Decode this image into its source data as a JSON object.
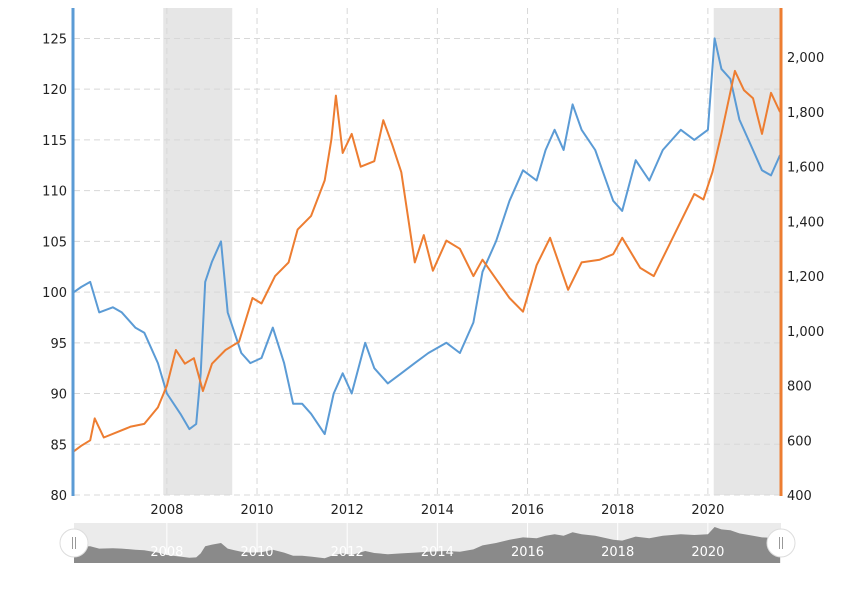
{
  "chart_data": {
    "type": "line",
    "title": "",
    "xlabel": "",
    "x_ticks": [
      "2008",
      "2010",
      "2012",
      "2014",
      "2016",
      "2018",
      "2020"
    ],
    "xlim": [
      2005.94,
      2021.6
    ],
    "left_axis": {
      "ylim": [
        80,
        128
      ],
      "ticks": [
        "80",
        "85",
        "90",
        "95",
        "100",
        "105",
        "110",
        "115",
        "120",
        "125"
      ],
      "color": "#5b9bd5"
    },
    "right_axis": {
      "ylim": [
        400,
        2180
      ],
      "ticks": [
        "400",
        "600",
        "800",
        "1,000",
        "1,200",
        "1,400",
        "1,600",
        "1,800",
        "2,000"
      ],
      "color": "#ed7d31"
    },
    "grid": true,
    "recession_shading": [
      [
        2007.92,
        2009.45
      ],
      [
        2020.13,
        2021.6
      ]
    ],
    "shading_color": "#e6e6e6",
    "series": [
      {
        "axis": "left",
        "color": "#5b9bd5",
        "x": [
          2005.94,
          2006.1,
          2006.3,
          2006.5,
          2006.8,
          2007.0,
          2007.3,
          2007.5,
          2007.8,
          2008.0,
          2008.3,
          2008.5,
          2008.65,
          2008.75,
          2008.85,
          2009.0,
          2009.2,
          2009.35,
          2009.5,
          2009.65,
          2009.85,
          2010.1,
          2010.35,
          2010.6,
          2010.8,
          2011.0,
          2011.2,
          2011.5,
          2011.7,
          2011.9,
          2012.1,
          2012.4,
          2012.6,
          2012.9,
          2013.2,
          2013.5,
          2013.8,
          2014.2,
          2014.5,
          2014.8,
          2015.0,
          2015.3,
          2015.6,
          2015.9,
          2016.2,
          2016.4,
          2016.6,
          2016.8,
          2017.0,
          2017.2,
          2017.5,
          2017.9,
          2018.1,
          2018.4,
          2018.7,
          2019.0,
          2019.4,
          2019.7,
          2020.0,
          2020.15,
          2020.3,
          2020.5,
          2020.7,
          2021.0,
          2021.2,
          2021.4,
          2021.6
        ],
        "y": [
          100,
          100.5,
          101,
          98,
          98.5,
          98,
          96.5,
          96,
          93,
          90,
          88,
          86.5,
          87,
          92,
          101,
          103,
          105,
          98,
          96,
          94,
          93,
          93.5,
          96.5,
          93,
          89,
          89,
          88,
          86,
          90,
          92,
          90,
          95,
          92.5,
          91,
          92,
          93,
          94,
          95,
          94,
          97,
          102,
          105,
          109,
          112,
          111,
          114,
          116,
          114,
          118.5,
          116,
          114,
          109,
          108,
          113,
          111,
          114,
          116,
          115,
          116,
          125,
          122,
          121,
          117,
          114,
          112,
          111.5,
          113.5
        ]
      },
      {
        "axis": "right",
        "color": "#ed7d31",
        "x": [
          2005.94,
          2006.1,
          2006.3,
          2006.4,
          2006.6,
          2006.9,
          2007.2,
          2007.5,
          2007.8,
          2008.0,
          2008.2,
          2008.4,
          2008.6,
          2008.8,
          2009.0,
          2009.3,
          2009.6,
          2009.9,
          2010.1,
          2010.4,
          2010.7,
          2010.9,
          2011.2,
          2011.5,
          2011.65,
          2011.75,
          2011.9,
          2012.1,
          2012.3,
          2012.6,
          2012.8,
          2013.0,
          2013.2,
          2013.5,
          2013.7,
          2013.9,
          2014.2,
          2014.5,
          2014.8,
          2015.0,
          2015.3,
          2015.6,
          2015.9,
          2016.2,
          2016.5,
          2016.9,
          2017.2,
          2017.6,
          2017.9,
          2018.1,
          2018.5,
          2018.8,
          2019.1,
          2019.4,
          2019.7,
          2019.9,
          2020.1,
          2020.3,
          2020.6,
          2020.8,
          2021.0,
          2021.2,
          2021.4,
          2021.6
        ],
        "y": [
          560,
          580,
          600,
          680,
          610,
          630,
          650,
          660,
          720,
          800,
          930,
          880,
          900,
          780,
          880,
          930,
          960,
          1120,
          1100,
          1200,
          1250,
          1370,
          1420,
          1550,
          1700,
          1860,
          1650,
          1720,
          1600,
          1620,
          1770,
          1680,
          1580,
          1250,
          1350,
          1220,
          1330,
          1300,
          1200,
          1260,
          1190,
          1120,
          1070,
          1240,
          1340,
          1150,
          1250,
          1260,
          1280,
          1340,
          1230,
          1200,
          1300,
          1400,
          1500,
          1480,
          1580,
          1720,
          1950,
          1880,
          1850,
          1720,
          1870,
          1800
        ]
      }
    ],
    "navigator": {
      "labels": [
        "2008",
        "2010",
        "2012",
        "2014",
        "2016",
        "2018",
        "2020"
      ],
      "fill_color": "#8a8a8a"
    }
  }
}
